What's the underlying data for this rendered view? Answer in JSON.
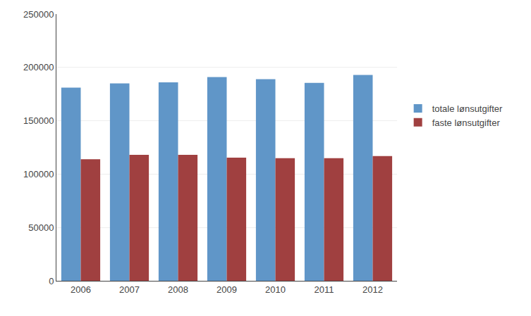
{
  "chart_data": {
    "type": "bar",
    "categories": [
      "2006",
      "2007",
      "2008",
      "2009",
      "2010",
      "2011",
      "2012"
    ],
    "series": [
      {
        "name": "totale lønsutgifter",
        "color": "#6096C8",
        "values": [
          181000,
          185000,
          186000,
          191000,
          189000,
          185500,
          193000
        ]
      },
      {
        "name": "faste lønsutgifter",
        "color": "#A04040",
        "values": [
          114000,
          118000,
          118000,
          115500,
          115000,
          115000,
          117000
        ]
      }
    ],
    "ylim": [
      0,
      250000
    ],
    "yticks": [
      0,
      50000,
      100000,
      150000,
      200000,
      250000
    ],
    "grid": true,
    "legend": "right"
  }
}
